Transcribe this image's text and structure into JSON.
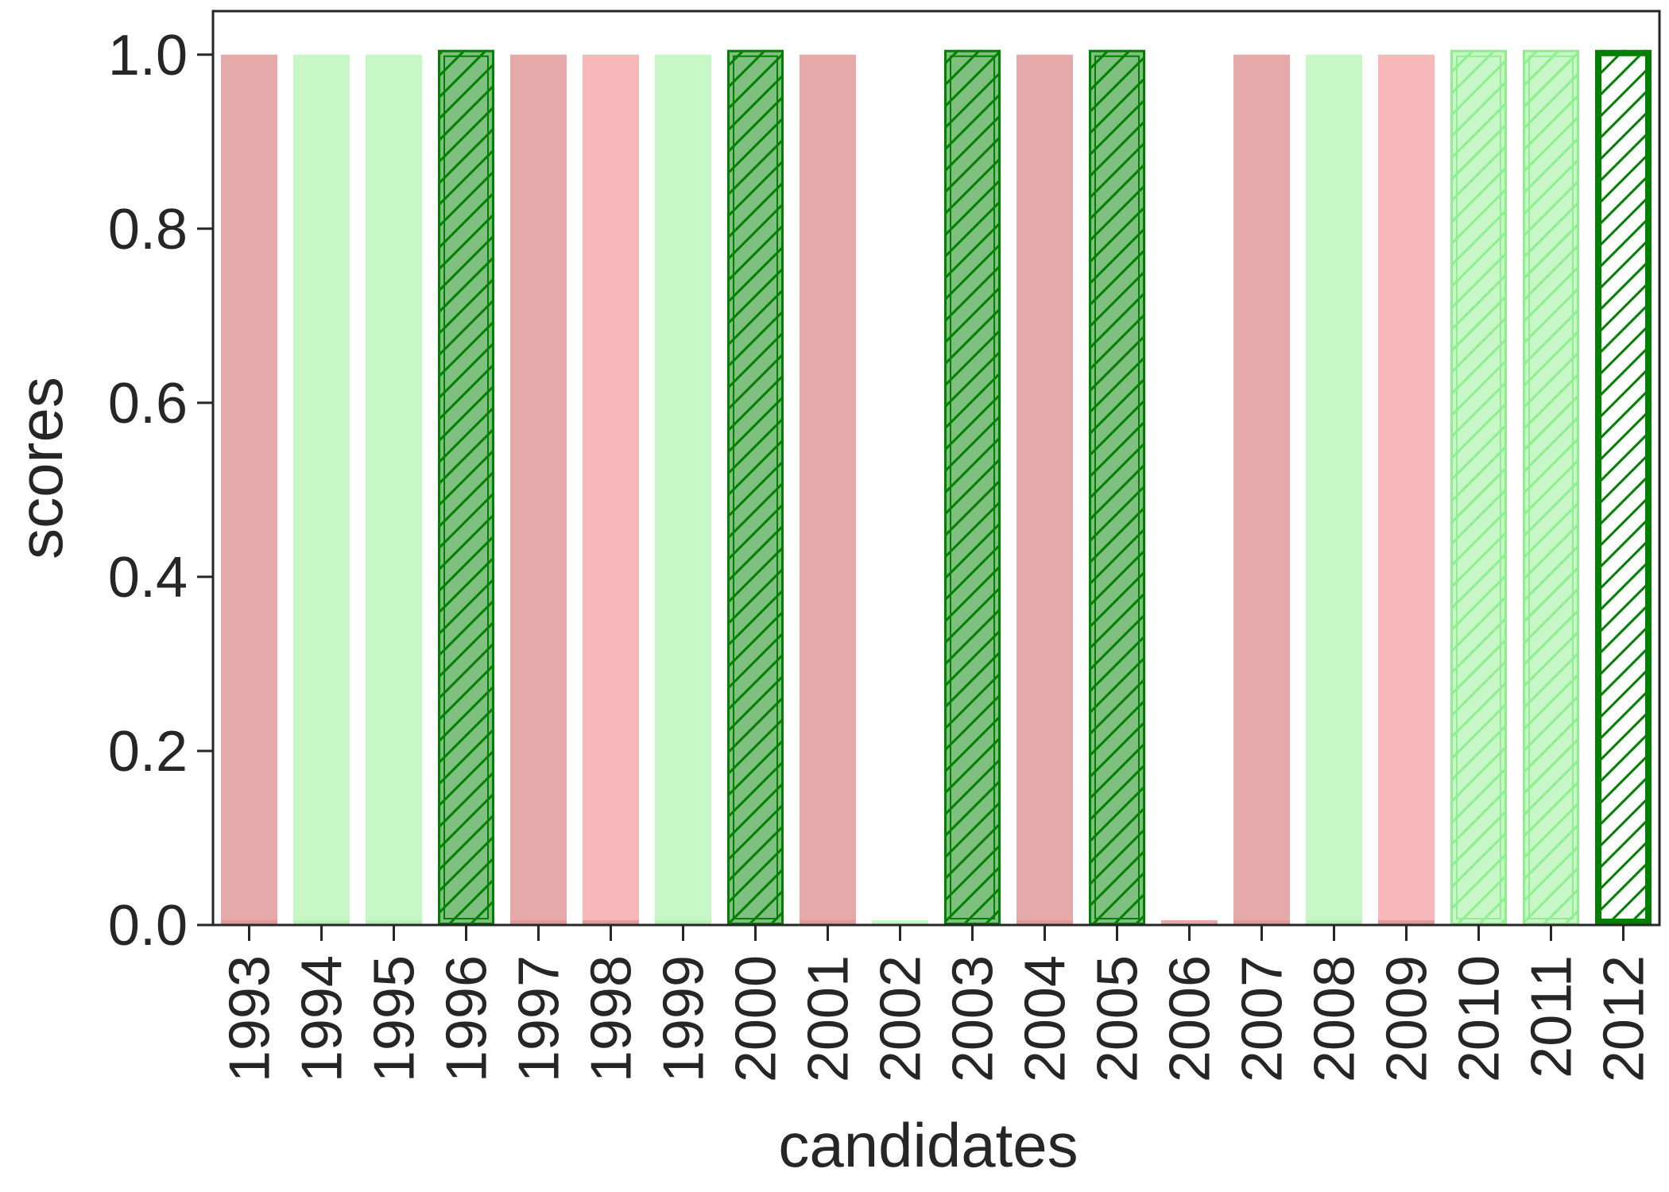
{
  "chart_data": {
    "type": "bar",
    "xlabel": "candidates",
    "ylabel": "scores",
    "ylim": [
      0,
      1.05
    ],
    "yticks": [
      "0.0",
      "0.2",
      "0.4",
      "0.6",
      "0.8",
      "1.0"
    ],
    "categories": [
      "1993",
      "1994",
      "1995",
      "1996",
      "1997",
      "1998",
      "1999",
      "2000",
      "2001",
      "2002",
      "2003",
      "2004",
      "2005",
      "2006",
      "2007",
      "2008",
      "2009",
      "2010",
      "2011",
      "2012"
    ],
    "values": [
      1,
      1,
      1,
      1,
      1,
      1,
      1,
      1,
      1,
      0,
      1,
      1,
      1,
      0,
      1,
      1,
      1,
      1,
      1,
      1
    ],
    "bar_styles": [
      "red-dark",
      "green-light",
      "green-light",
      "green-hatched",
      "red-dark",
      "red-light",
      "green-light",
      "green-hatched",
      "red-dark",
      "green-light",
      "green-hatched",
      "red-dark",
      "green-hatched",
      "red-dark",
      "red-dark",
      "green-light",
      "red-light",
      "green-light-hatched",
      "green-light-hatched",
      "white-hatched"
    ],
    "grid": false,
    "colors": {
      "red-dark": "#e6a9aa",
      "red-light": "#f6b8b8",
      "green-light": "#c7f6c7",
      "green-dark": "#7fbf7f",
      "green-edge": "#008000",
      "green-light-edge": "#90ee90",
      "axis": "#262626"
    }
  }
}
